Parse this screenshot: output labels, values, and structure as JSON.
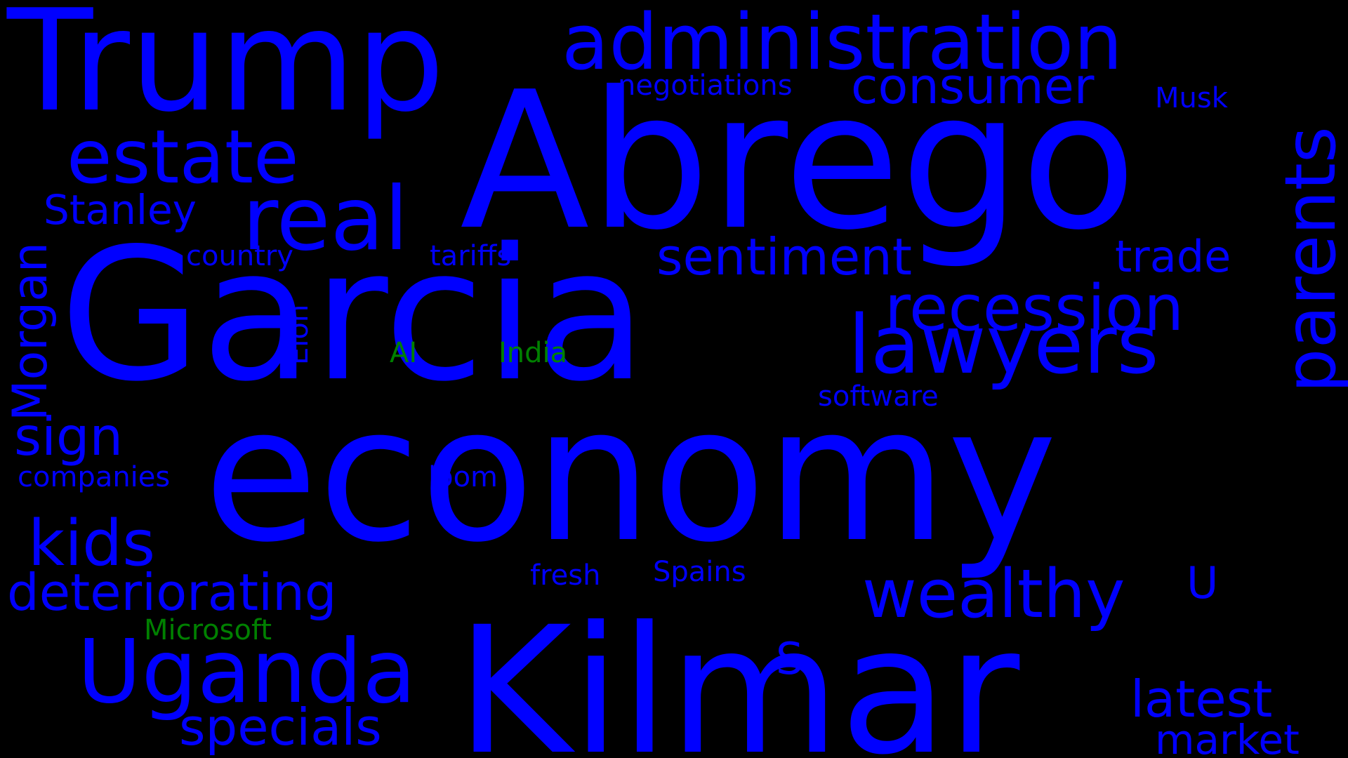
{
  "wordcloud": {
    "colors": {
      "background": "#000000",
      "primary": "#0000ff",
      "highlight": "#008000"
    },
    "words": {
      "trump": "Trump",
      "administration": "administration",
      "abrego": "Abrego",
      "negotiations": "negotiations",
      "consumer": "consumer",
      "musk": "Musk",
      "estate": "estate",
      "stanley": "Stanley",
      "real": "real",
      "garcia": "Garcia",
      "country": "country",
      "tariffs": "tariffs",
      "sentiment": "sentiment",
      "trade": "trade",
      "parents": "parents",
      "recession": "recession",
      "lawyers": "lawyers",
      "morgan": "Morgan",
      "elon": "Elon",
      "ai": "AI",
      "india": "India",
      "software": "software",
      "economy": "economy",
      "sign": "sign",
      "companies": "companies",
      "loom": "loom",
      "kids": "kids",
      "deteriorating": "deteriorating",
      "fresh": "fresh",
      "spains": "Spains",
      "wealthy": "wealthy",
      "u": "U",
      "microsoft": "Microsoft",
      "uganda": "Uganda",
      "s": "S",
      "kilmar": "Kilmar",
      "latest": "latest",
      "specials": "specials",
      "market": "market"
    }
  }
}
